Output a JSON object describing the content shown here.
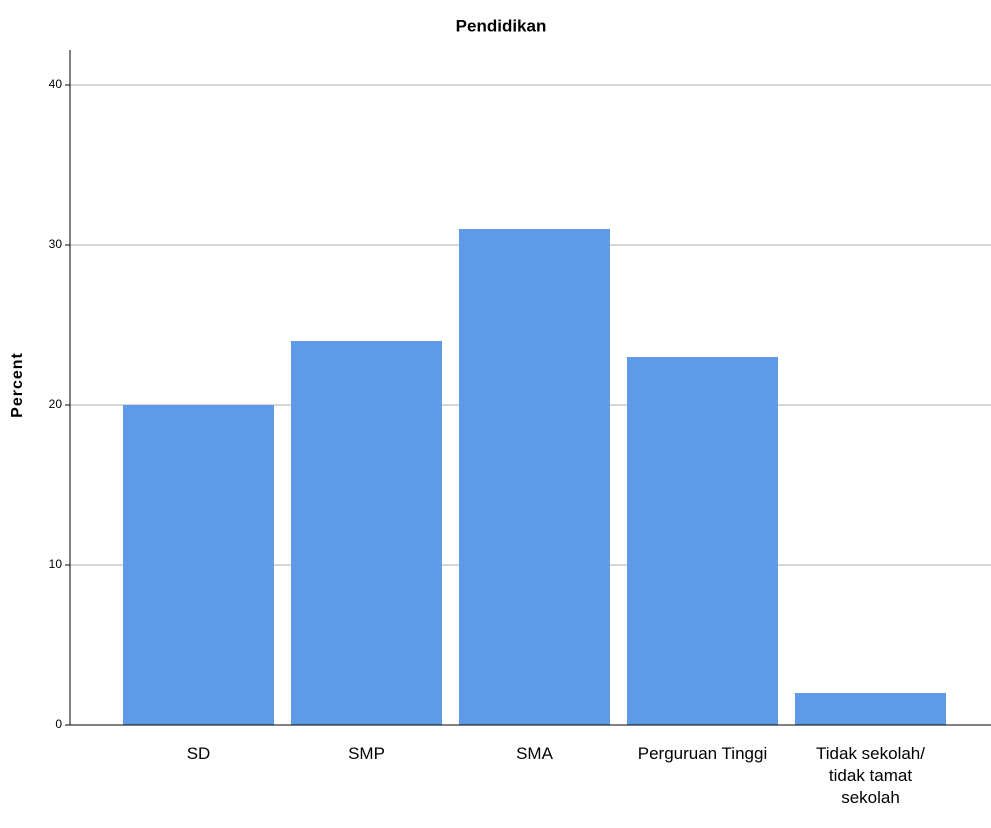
{
  "chart_data": {
    "type": "bar",
    "title": "Pendidikan",
    "y_label": "Percent",
    "categories": [
      "SD",
      "SMP",
      "SMA",
      "Perguruan Tinggi",
      "Tidak sekolah/\ntidak tamat\nsekolah"
    ],
    "values": [
      20,
      24,
      31,
      23,
      2
    ],
    "color": "#5d9be6",
    "ylim": [
      0,
      42
    ],
    "yticks": [
      0,
      10,
      20,
      30,
      40
    ],
    "grid": true
  }
}
